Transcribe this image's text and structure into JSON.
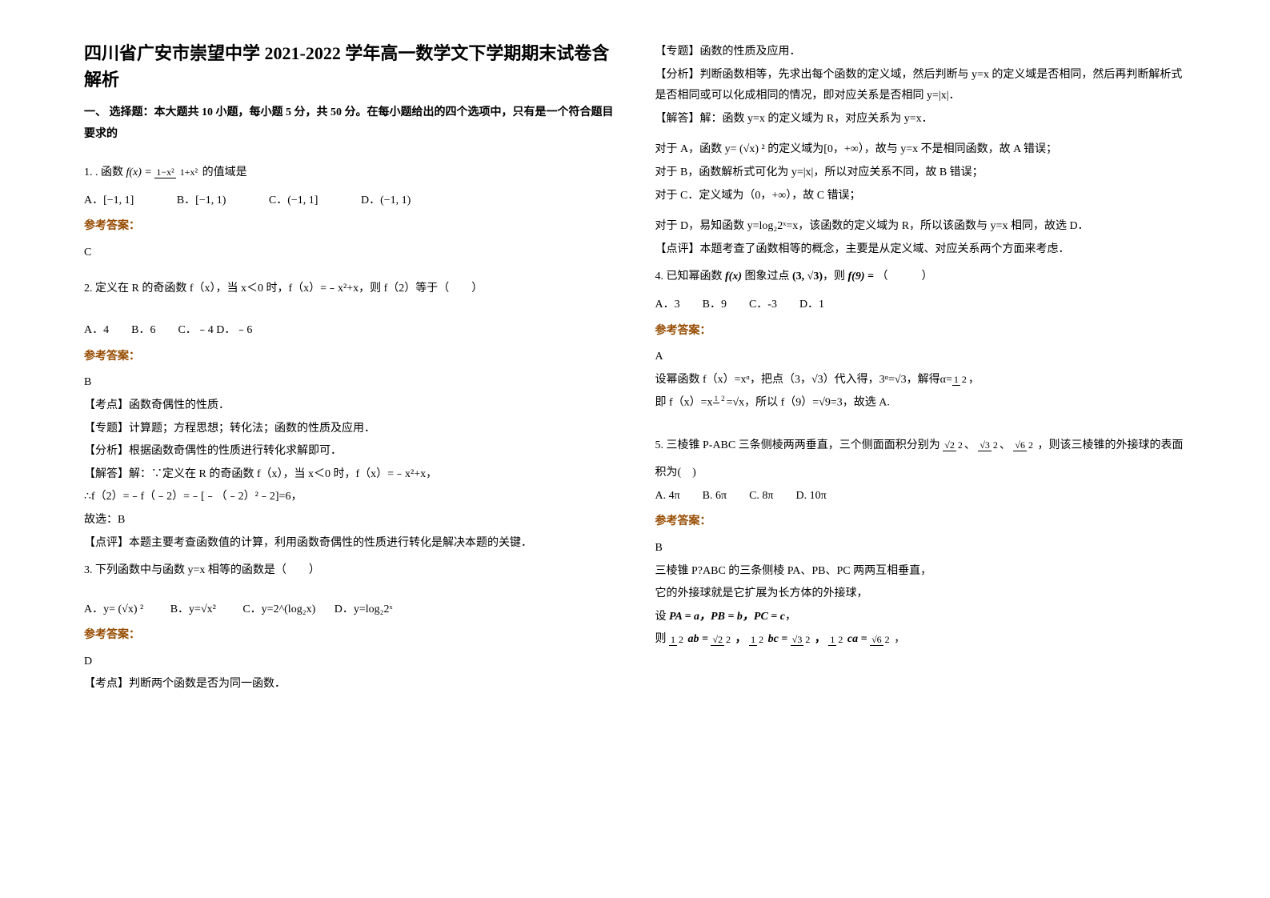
{
  "title": "四川省广安市崇望中学 2021-2022 学年高一数学文下学期期末试卷含解析",
  "section1_header": "一、 选择题：本大题共 10 小题，每小题 5 分，共 50 分。在每小题给出的四个选项中，只有是一个符合题目要求的",
  "q1_text": "1. . 函数 ",
  "q1_formula_num": "1−x²",
  "q1_formula_den": "1+x²",
  "q1_suffix": " 的值域是",
  "q1_optA": "A．[−1, 1]",
  "q1_optB": "B．[−1, 1)",
  "q1_optC": "C．(−1, 1]",
  "q1_optD": "D．(−1, 1)",
  "answer_label": "参考答案：",
  "q1_answer": "C",
  "q2_text": "2. 定义在 R 的奇函数 f（x），当 x＜0 时，f（x）=﹣x²+x，则 f（2）等于（　　）",
  "q2_opts": "A．4　　B．6　　C．﹣4 D．﹣6",
  "q2_answer": "B",
  "q2_point1": "【考点】函数奇偶性的性质．",
  "q2_point2": "【专题】计算题；方程思想；转化法；函数的性质及应用．",
  "q2_point3": "【分析】根据函数奇偶性的性质进行转化求解即可．",
  "q2_point4": "【解答】解：∵定义在 R 的奇函数 f（x），当 x＜0 时，f（x）=﹣x²+x，",
  "q2_point5": "∴f（2）=﹣f（﹣2）=﹣[﹣（﹣2）²﹣2]=6，",
  "q2_point6": "故选：B",
  "q2_point7": "【点评】本题主要考查函数值的计算，利用函数奇偶性的性质进行转化是解决本题的关键．",
  "q3_text": "3. 下列函数中与函数 y=x 相等的函数是（　　）",
  "q3_optA": "A．y= (√x) ²",
  "q3_optB": "B．y=√x²",
  "q3_optC": "C．y=2^(log₂x)",
  "q3_optD": "D．y=log₂2ˣ",
  "q3_answer": "D",
  "q3_point1": "【考点】判断两个函数是否为同一函数．",
  "q3_r_point1": "【专题】函数的性质及应用．",
  "q3_r_point2": "【分析】判断函数相等，先求出每个函数的定义域，然后判断与 y=x 的定义域是否相同，然后再判断解析式是否相同或可以化成相同的情况，即对应关系是否相同 y=|x|．",
  "q3_r_point3": "【解答】解：函数 y=x 的定义域为 R，对应关系为 y=x．",
  "q3_r_point4": "对于 A，函数 y= (√x) ² 的定义域为[0，+∞），故与 y=x 不是相同函数，故 A 错误；",
  "q3_r_point5": "对于 B，函数解析式可化为 y=|x|，所以对应关系不同，故 B 错误；",
  "q3_r_point6": "对于 C．定义域为（0，+∞），故 C 错误；",
  "q3_r_point7": "对于 D，易知函数 y=log₂2ˣ=x，该函数的定义域为 R，所以该函数与 y=x 相同，故选 D．",
  "q3_r_point8": "【点评】本题考查了函数相等的概念，主要是从定义域、对应关系两个方面来考虑．",
  "q4_text_pre": "4. 已知幂函数 ",
  "q4_fx": "f(x)",
  "q4_mid": " 图象过点 ",
  "q4_point": "(3, √3)",
  "q4_text_post": "，则 ",
  "q4_f9": "f(9) = ",
  "q4_paren": "（　　　）",
  "q4_opts": "A．3　　B．9　　C．-3　　D．1",
  "q4_answer": "A",
  "q4_sol1": "设幂函数 f（x）=xᵅ，把点（3，√3）代入得，3ᵅ=√3，解得α=",
  "q4_sol1_frac_num": "1",
  "q4_sol1_frac_den": "2",
  "q4_sol1_suffix": "，",
  "q4_sol2_pre": "即 f（x）=x",
  "q4_sol2_mid": "=√x，所以 f（9）=√9=3，故选 A.",
  "q5_text_pre": "5. 三棱锥 P-ABC 三条侧棱两两垂直，三个侧面面积分别为 ",
  "q5_frac1_num": "√2",
  "q5_frac1_den": "2",
  "q5_frac2_num": "√3",
  "q5_frac2_den": "2",
  "q5_frac3_num": "√6",
  "q5_frac3_den": "2",
  "q5_comma": "、",
  "q5_text_post": " ，则该三棱锥的外接球的表面",
  "q5_text_post2": "积为(　)",
  "q5_opts": "A. 4π　　B. 6π　　C. 8π　　D. 10π",
  "q5_answer": "B",
  "q5_sol1": "三棱锥 P?ABC 的三条侧棱 PA、PB、PC 两两互相垂直，",
  "q5_sol2": "它的外接球就是它扩展为长方体的外接球，",
  "q5_sol3_pre": "设 ",
  "q5_sol3_formula": "PA = a，PB = b，PC = c",
  "q5_sol3_post": "，",
  "q5_sol4_pre": "则 ",
  "q5_sol4_f1_l_num": "1",
  "q5_sol4_f1_l_den": "2",
  "q5_sol4_f1_mid": "ab =",
  "q5_sol4_f1_r_num": "√2",
  "q5_sol4_f1_r_den": "2",
  "q5_sol4_f2_mid": "bc =",
  "q5_sol4_f2_r_num": "√3",
  "q5_sol4_f2_r_den": "2",
  "q5_sol4_f3_mid": "ca =",
  "q5_sol4_f3_r_num": "√6",
  "q5_sol4_f3_r_den": "2",
  "q5_sol4_post": "，"
}
